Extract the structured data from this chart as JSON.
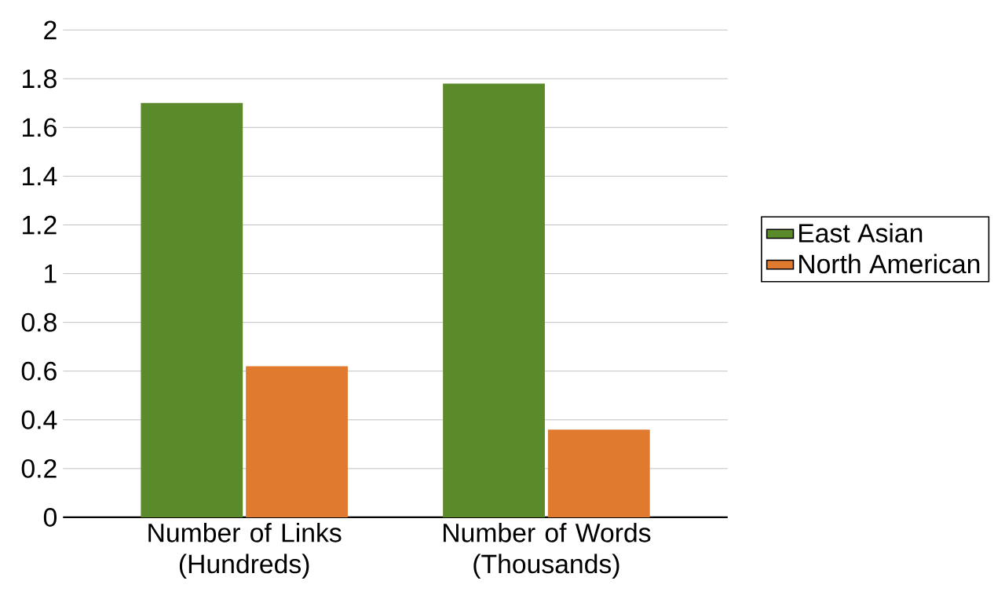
{
  "chart_data": {
    "type": "bar",
    "categories": [
      "Number of Links (Hundreds)",
      "Number of Words (Thousands)"
    ],
    "series": [
      {
        "name": "East Asian",
        "color": "#5a8a2a",
        "values": [
          1.7,
          1.78
        ]
      },
      {
        "name": "North American",
        "color": "#e07a2e",
        "values": [
          0.62,
          0.36
        ]
      }
    ],
    "ylim": [
      0,
      2
    ],
    "yticks": [
      0,
      0.2,
      0.4,
      0.6,
      0.8,
      1,
      1.2,
      1.4,
      1.6,
      1.8,
      2
    ],
    "grid": "y",
    "legend": "right"
  }
}
